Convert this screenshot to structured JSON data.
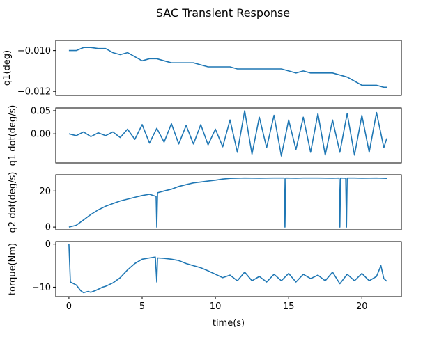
{
  "chart_data": {
    "title": "SAC Transient Response",
    "xlabel": "time(s)",
    "shared_x": true,
    "xlim": [
      -0.9,
      22.7
    ],
    "xticks": [
      0,
      5,
      10,
      15,
      20
    ],
    "line_color": "#1f77b4",
    "subplots": [
      {
        "type": "line",
        "ylabel": "q1(deg)",
        "ylim": [
          -0.0122,
          -0.0095
        ],
        "yticks": [
          {
            "value": -0.01,
            "label": "−0.010"
          },
          {
            "value": -0.012,
            "label": "−0.012"
          }
        ],
        "x": [
          0.0,
          0.5,
          1.0,
          1.5,
          2.0,
          2.5,
          3.0,
          3.5,
          4.0,
          4.5,
          5.0,
          5.5,
          6.0,
          6.5,
          7.0,
          7.5,
          8.0,
          8.5,
          9.0,
          9.5,
          10.0,
          10.5,
          11.0,
          11.5,
          12.0,
          12.5,
          13.0,
          13.5,
          14.0,
          14.5,
          15.0,
          15.5,
          16.0,
          16.5,
          17.0,
          17.5,
          18.0,
          18.5,
          19.0,
          19.5,
          20.0,
          20.5,
          21.0,
          21.5,
          21.7
        ],
        "y": [
          -0.01,
          -0.01,
          -0.00985,
          -0.00985,
          -0.0099,
          -0.0099,
          -0.0101,
          -0.0102,
          -0.0101,
          -0.0103,
          -0.0105,
          -0.0104,
          -0.0104,
          -0.0105,
          -0.0106,
          -0.0106,
          -0.0106,
          -0.0106,
          -0.0107,
          -0.0108,
          -0.0108,
          -0.0108,
          -0.0108,
          -0.0109,
          -0.0109,
          -0.0109,
          -0.0109,
          -0.0109,
          -0.0109,
          -0.0109,
          -0.011,
          -0.0111,
          -0.011,
          -0.0111,
          -0.0111,
          -0.0111,
          -0.0111,
          -0.0112,
          -0.0113,
          -0.0115,
          -0.0117,
          -0.0117,
          -0.0117,
          -0.0118,
          -0.0118
        ]
      },
      {
        "type": "line",
        "ylabel": "q1 dot(deg/s)",
        "ylim": [
          -0.063,
          0.056
        ],
        "yticks": [
          {
            "value": 0.05,
            "label": "0.05"
          },
          {
            "value": 0.0,
            "label": "0.00"
          }
        ],
        "x": [
          0.0,
          0.5,
          1.0,
          1.5,
          2.0,
          2.5,
          3.0,
          3.5,
          4.0,
          4.5,
          5.0,
          5.5,
          6.0,
          6.5,
          7.0,
          7.5,
          8.0,
          8.5,
          9.0,
          9.5,
          10.0,
          10.5,
          11.0,
          11.5,
          12.0,
          12.5,
          13.0,
          13.5,
          14.0,
          14.5,
          15.0,
          15.5,
          16.0,
          16.5,
          17.0,
          17.5,
          18.0,
          18.5,
          19.0,
          19.5,
          20.0,
          20.5,
          21.0,
          21.5,
          21.7
        ],
        "y": [
          0.0,
          -0.004,
          0.004,
          -0.006,
          0.002,
          -0.004,
          0.004,
          -0.008,
          0.01,
          -0.012,
          0.02,
          -0.02,
          0.012,
          -0.018,
          0.022,
          -0.022,
          0.018,
          -0.022,
          0.02,
          -0.024,
          0.01,
          -0.028,
          0.03,
          -0.04,
          0.05,
          -0.044,
          0.036,
          -0.03,
          0.04,
          -0.048,
          0.03,
          -0.034,
          0.036,
          -0.04,
          0.044,
          -0.046,
          0.03,
          -0.04,
          0.044,
          -0.046,
          0.04,
          -0.04,
          0.046,
          -0.03,
          -0.01
        ]
      },
      {
        "type": "line",
        "ylabel": "q2 dot(deg/s)",
        "ylim": [
          -1.5,
          29
        ],
        "yticks": [
          {
            "value": 20,
            "label": "20"
          },
          {
            "value": 0,
            "label": "0"
          }
        ],
        "x": [
          0.0,
          0.5,
          1.0,
          1.5,
          2.0,
          2.5,
          3.0,
          3.5,
          4.0,
          4.5,
          5.0,
          5.5,
          5.95,
          6.0,
          6.05,
          6.5,
          7.0,
          7.5,
          8.0,
          8.5,
          9.0,
          9.5,
          10.0,
          10.5,
          11.0,
          11.5,
          12.0,
          13.0,
          14.0,
          14.7,
          14.75,
          14.8,
          15.5,
          16.0,
          17.0,
          18.0,
          18.45,
          18.5,
          18.55,
          18.9,
          18.95,
          19.0,
          19.5,
          20.0,
          21.0,
          21.7
        ],
        "y": [
          0.0,
          1.0,
          4.0,
          7.0,
          9.5,
          11.5,
          13.0,
          14.5,
          15.5,
          16.5,
          17.5,
          18.2,
          17.0,
          0.0,
          19.0,
          20.0,
          21.0,
          22.5,
          23.5,
          24.5,
          25.0,
          25.5,
          26.0,
          26.6,
          27.0,
          27.1,
          27.2,
          27.1,
          27.2,
          27.2,
          0.0,
          27.2,
          27.1,
          27.2,
          27.2,
          27.1,
          27.2,
          0.0,
          27.2,
          27.1,
          0.0,
          27.2,
          27.2,
          27.1,
          27.2,
          27.0
        ]
      },
      {
        "type": "line",
        "ylabel": "torque(Nm)",
        "ylim": [
          -12.2,
          0.6
        ],
        "yticks": [
          {
            "value": 0,
            "label": "0"
          },
          {
            "value": -10,
            "label": "−10"
          }
        ],
        "x": [
          0.0,
          0.1,
          0.5,
          0.8,
          1.0,
          1.3,
          1.5,
          1.8,
          2.0,
          2.3,
          2.5,
          3.0,
          3.5,
          4.0,
          4.5,
          5.0,
          5.5,
          5.9,
          6.0,
          6.05,
          6.5,
          7.0,
          7.5,
          8.0,
          8.5,
          9.0,
          9.5,
          10.0,
          10.5,
          11.0,
          11.5,
          12.0,
          12.5,
          13.0,
          13.5,
          14.0,
          14.5,
          15.0,
          15.5,
          16.0,
          16.5,
          17.0,
          17.5,
          18.0,
          18.5,
          19.0,
          19.5,
          20.0,
          20.5,
          21.0,
          21.3,
          21.5,
          21.7
        ],
        "y": [
          0.0,
          -8.8,
          -9.5,
          -10.8,
          -11.3,
          -11.0,
          -11.2,
          -10.8,
          -10.5,
          -10.0,
          -9.8,
          -9.0,
          -7.8,
          -6.0,
          -4.5,
          -3.5,
          -3.2,
          -3.0,
          -8.8,
          -3.2,
          -3.3,
          -3.5,
          -3.8,
          -4.5,
          -5.0,
          -5.5,
          -6.2,
          -7.0,
          -7.8,
          -7.2,
          -8.5,
          -6.5,
          -8.5,
          -7.5,
          -8.8,
          -7.0,
          -8.5,
          -6.8,
          -8.8,
          -7.0,
          -8.0,
          -7.2,
          -8.5,
          -6.5,
          -9.2,
          -7.0,
          -8.5,
          -6.8,
          -8.5,
          -7.5,
          -5.0,
          -8.0,
          -8.6
        ]
      }
    ]
  }
}
